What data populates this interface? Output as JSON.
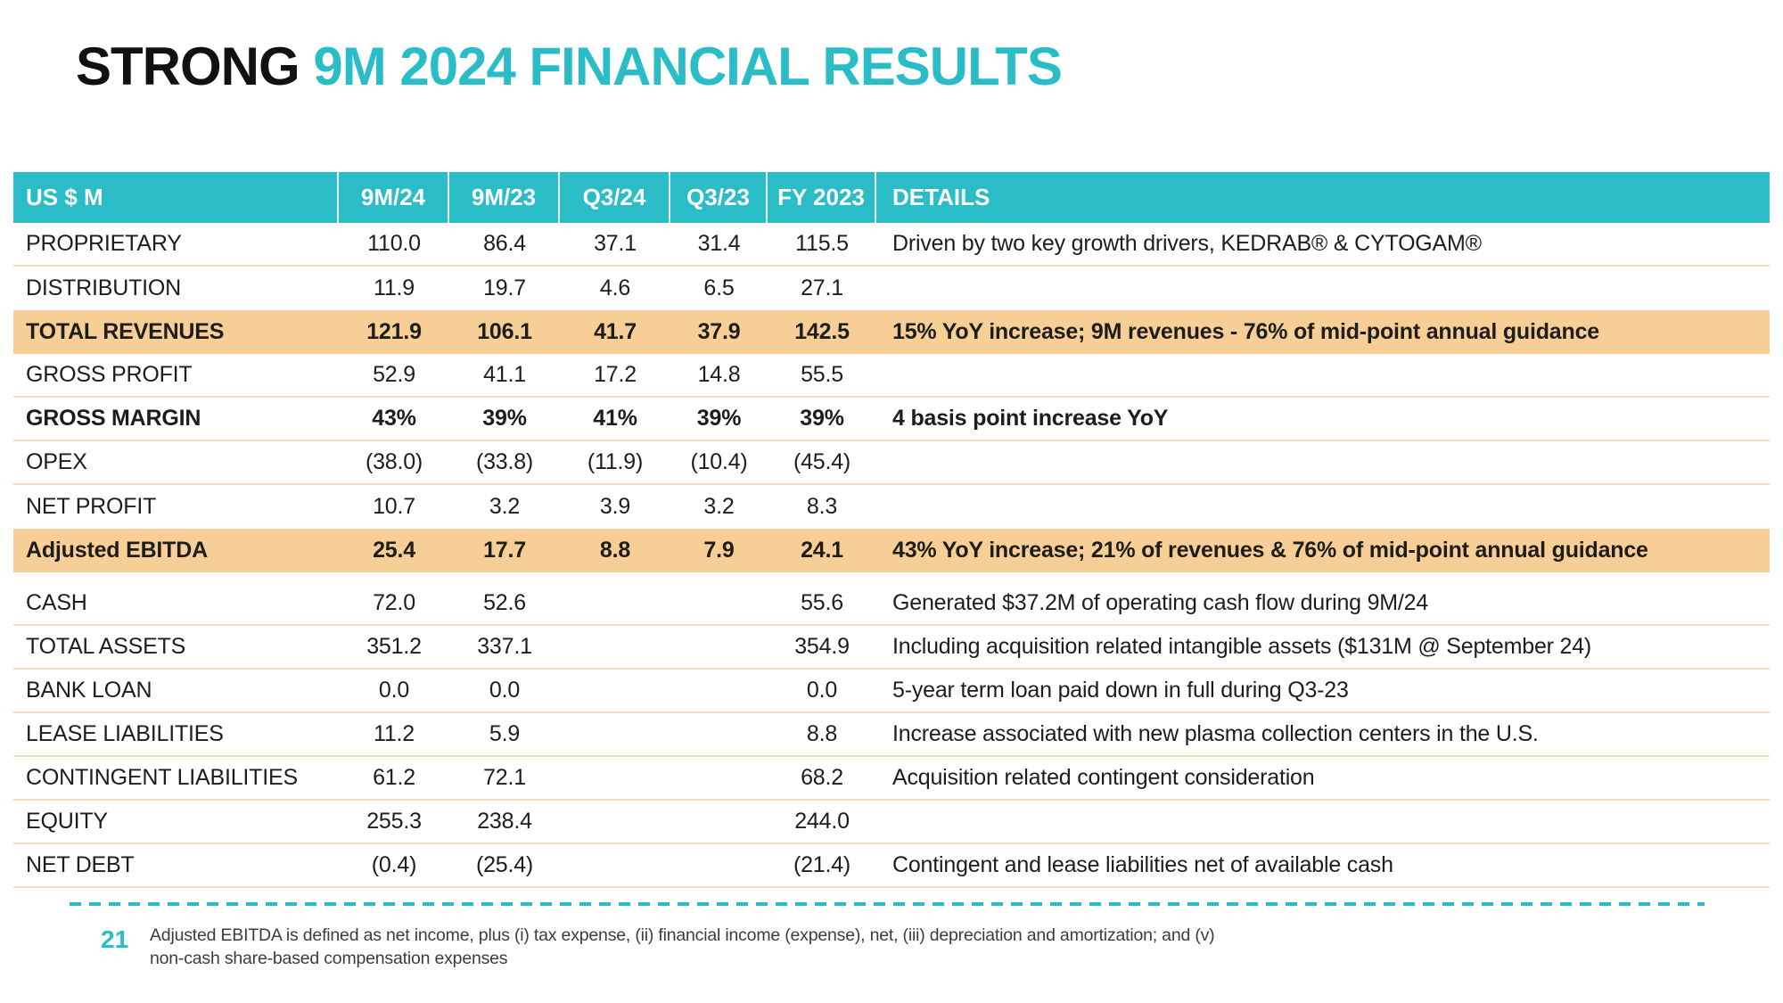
{
  "page": {
    "title_black": "STRONG",
    "title_teal": "9M 2024 FINANCIAL RESULTS"
  },
  "colors": {
    "teal": "#2ABCC7",
    "highlight_orange": "#F7CE96",
    "row_divider": "#F3DCBA"
  },
  "table": {
    "columns": [
      "US $ M",
      "9M/24",
      "9M/23",
      "Q3/24",
      "Q3/23",
      "FY 2023",
      "DETAILS"
    ],
    "rows": [
      {
        "label": "PROPRIETARY",
        "values": [
          "110.0",
          "86.4",
          "37.1",
          "31.4",
          "115.5"
        ],
        "details": "Driven by two key growth drivers, KEDRAB® & CYTOGAM®",
        "style": "normal"
      },
      {
        "label": "DISTRIBUTION",
        "values": [
          "11.9",
          "19.7",
          "4.6",
          "6.5",
          "27.1"
        ],
        "details": "",
        "style": "normal"
      },
      {
        "label": "TOTAL REVENUES",
        "values": [
          "121.9",
          "106.1",
          "41.7",
          "37.9",
          "142.5"
        ],
        "details": "15% YoY increase; 9M revenues - 76% of mid-point annual guidance",
        "style": "highlight"
      },
      {
        "label": "GROSS PROFIT",
        "values": [
          "52.9",
          "41.1",
          "17.2",
          "14.8",
          "55.5"
        ],
        "details": "",
        "style": "normal"
      },
      {
        "label": "GROSS MARGIN",
        "values": [
          "43%",
          "39%",
          "41%",
          "39%",
          "39%"
        ],
        "details": "4 basis point increase YoY",
        "style": "bold"
      },
      {
        "label": "OPEX",
        "values": [
          "(38.0)",
          "(33.8)",
          "(11.9)",
          "(10.4)",
          "(45.4)"
        ],
        "details": "",
        "style": "normal"
      },
      {
        "label": "NET PROFIT",
        "values": [
          "10.7",
          "3.2",
          "3.9",
          "3.2",
          "8.3"
        ],
        "details": "",
        "style": "normal"
      },
      {
        "label": "Adjusted EBITDA",
        "values": [
          "25.4",
          "17.7",
          "8.8",
          "7.9",
          "24.1"
        ],
        "details": "43% YoY increase; 21% of revenues & 76% of mid-point annual guidance",
        "style": "highlight"
      },
      {
        "label": "CASH",
        "values": [
          "72.0",
          "52.6",
          "",
          "",
          "55.6"
        ],
        "details": "Generated $37.2M of operating cash flow during 9M/24",
        "style": "normal",
        "gap_before": true
      },
      {
        "label": "TOTAL ASSETS",
        "values": [
          "351.2",
          "337.1",
          "",
          "",
          "354.9"
        ],
        "details": "Including acquisition related intangible assets ($131M @ September 24)",
        "style": "normal"
      },
      {
        "label": "BANK LOAN",
        "values": [
          "0.0",
          "0.0",
          "",
          "",
          "0.0"
        ],
        "details": "5-year term loan paid down in full during Q3-23",
        "style": "normal"
      },
      {
        "label": "LEASE LIABILITIES",
        "values": [
          "11.2",
          "5.9",
          "",
          "",
          "8.8"
        ],
        "details": "Increase associated with new plasma collection centers in the U.S.",
        "style": "normal"
      },
      {
        "label": "CONTINGENT LIABILITIES",
        "values": [
          "61.2",
          "72.1",
          "",
          "",
          "68.2"
        ],
        "details": "Acquisition related contingent consideration",
        "style": "normal"
      },
      {
        "label": "EQUITY",
        "values": [
          "255.3",
          "238.4",
          "",
          "",
          "244.0"
        ],
        "details": "",
        "style": "normal"
      },
      {
        "label": "NET DEBT",
        "values": [
          "(0.4)",
          "(25.4)",
          "",
          "",
          "(21.4)"
        ],
        "details": "Contingent and lease liabilities net of available cash",
        "style": "normal"
      }
    ]
  },
  "footer": {
    "page_number": "21",
    "footnote_line1": "Adjusted EBITDA is defined as net income, plus (i) tax expense, (ii) financial income (expense), net, (iii) depreciation and amortization; and (v)",
    "footnote_line2": "non-cash share-based compensation expenses"
  }
}
